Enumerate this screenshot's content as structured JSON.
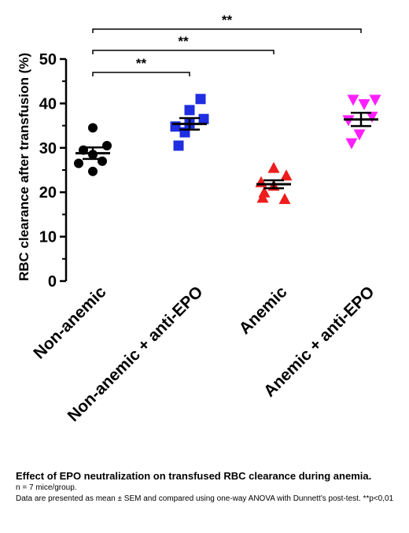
{
  "chart_data": {
    "type": "scatter",
    "ylabel": "RBC clearance after transfusion (%)",
    "ylim": [
      0,
      50
    ],
    "yticks": [
      "0",
      "10",
      "20",
      "30",
      "40",
      "50"
    ],
    "ytick_values": [
      0,
      10,
      20,
      30,
      40,
      50
    ],
    "grid": false,
    "categories": [
      "Non-anemic",
      "Non-anemic + anti-EPO",
      "Anemic",
      "Anemic + anti-EPO"
    ],
    "series": [
      {
        "category": "Non-anemic",
        "marker": "circle",
        "color": "#000000",
        "points": [
          34.5,
          30.5,
          29.5,
          28.5,
          26.5,
          27.0,
          24.7
        ],
        "mean": 28.8,
        "sem": 1.3
      },
      {
        "category": "Non-anemic + anti-EPO",
        "marker": "square",
        "color": "#1f2ee0",
        "points": [
          41.0,
          38.5,
          36.5,
          35.5,
          34.8,
          33.5,
          30.5
        ],
        "mean": 35.4,
        "sem": 1.3
      },
      {
        "category": "Anemic",
        "marker": "triangle-up",
        "color": "#ee1c1c",
        "points": [
          25.5,
          23.8,
          22.3,
          21.5,
          20.0,
          18.5,
          18.8
        ],
        "mean": 21.8,
        "sem": 0.9
      },
      {
        "category": "Anemic + anti-EPO",
        "marker": "triangle-down",
        "color": "#ff20ff",
        "points": [
          40.8,
          40.8,
          39.8,
          37.0,
          36.2,
          33.0,
          31.0
        ],
        "mean": 36.4,
        "sem": 1.5
      }
    ],
    "annotations": [
      {
        "from": "Non-anemic",
        "to": "Non-anemic + anti-EPO",
        "label": "**"
      },
      {
        "from": "Non-anemic",
        "to": "Anemic",
        "label": "**"
      },
      {
        "from": "Non-anemic",
        "to": "Anemic + anti-EPO",
        "label": "**"
      }
    ]
  },
  "caption": {
    "title": "Effect of EPO neutralization on transfused RBC clearance during anemia.",
    "n_line": "n = 7 mice/group.",
    "stats_line": "Data are presented as mean ± SEM and compared using one-way ANOVA with Dunnett’s post-test. **p<0,01"
  }
}
